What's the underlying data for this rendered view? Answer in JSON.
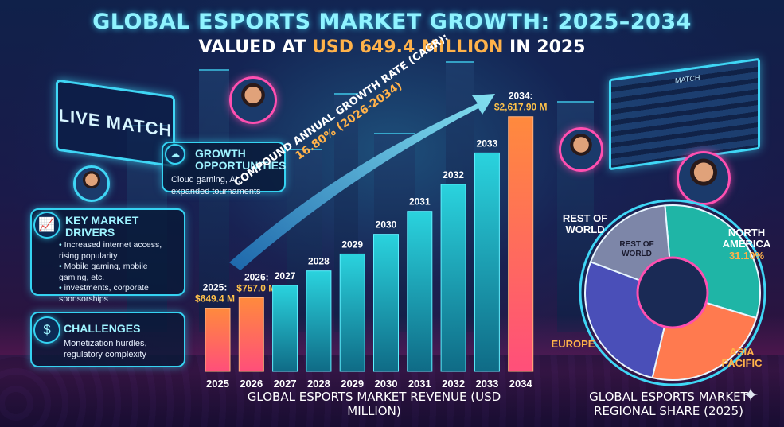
{
  "header": {
    "title": "GLOBAL ESPORTS MARKET GROWTH: 2025–2034",
    "subtitle_prefix": "VALUED AT ",
    "subtitle_highlight": "USD 649.4 MILLION",
    "subtitle_suffix": " IN 2025"
  },
  "scene": {
    "live_sign": "LIVE MATCH",
    "scoreboard_label": "MATCH"
  },
  "panels": {
    "growth": {
      "title": "GROWTH OPPORTUNITIES",
      "body": "Cloud gaming, AI, expanded tournaments",
      "icon": "cloud-network-icon"
    },
    "drivers": {
      "title": "KEY MARKET DRIVERS",
      "items": [
        "Increased internet access, rising popularity",
        "Mobile gaming, mobile gaming, etc.",
        "investments, corporate sponsorships"
      ],
      "icon": "chart-growth-icon"
    },
    "challenges": {
      "title": "CHALLENGES",
      "body": "Monetization hurdles, regulatory complexity",
      "icon": "coin-hand-icon"
    }
  },
  "cagr": {
    "line1": "COMPOUND ANNUAL GROWTH RATE (CAGR):",
    "line2": "16.80% (2026-2034)"
  },
  "chart_data": [
    {
      "type": "bar",
      "xlabel": "GLOBAL ESPORTS MARKET REVENUE (USD MILLION)",
      "categories": [
        "2025",
        "2026",
        "2027",
        "2028",
        "2029",
        "2030",
        "2031",
        "2032",
        "2033",
        "2034"
      ],
      "values": [
        649.4,
        757.0,
        884.2,
        1032.8,
        1206.3,
        1408.9,
        1645.6,
        1922.1,
        2244.9,
        2617.9
      ],
      "data_labels": [
        "2025:\n$649.4 M",
        "2026:\n$757.0 M",
        "2027",
        "2028",
        "2029",
        "2030",
        "2031",
        "2032",
        "2033",
        "2034:\n$2,617.90 M"
      ],
      "bar_colors": [
        "#ff6f4a",
        "#ff7a45",
        "#1fb5c4",
        "#1fb5c4",
        "#1fb5c4",
        "#1fb5c4",
        "#1fb5c4",
        "#1fb5c4",
        "#1fb5c4",
        "#ff6f5a"
      ],
      "ylim": [
        0,
        2700
      ],
      "grid": false,
      "legend": "none"
    },
    {
      "type": "pie",
      "title": "GLOBAL ESPORTS MARKET REGIONAL SHARE (2025)",
      "series": [
        {
          "name": "NORTH AMERICA",
          "value": 31.1,
          "label": "NORTH AMERICA\n31.10%",
          "color": "#1fb5a6"
        },
        {
          "name": "ASIA PACIFIC",
          "value": 24.0,
          "label": "ASIA PACIFIC",
          "color": "#ff7a4f"
        },
        {
          "name": "EUROPE",
          "value": 27.0,
          "label": "EUROPE",
          "color": "#4a4fb8"
        },
        {
          "name": "REST OF WORLD",
          "value": 17.9,
          "label": "REST OF WORLD",
          "color": "#7d86a8"
        }
      ],
      "inner_label": "REST OF WORLD",
      "legend": "none"
    }
  ]
}
